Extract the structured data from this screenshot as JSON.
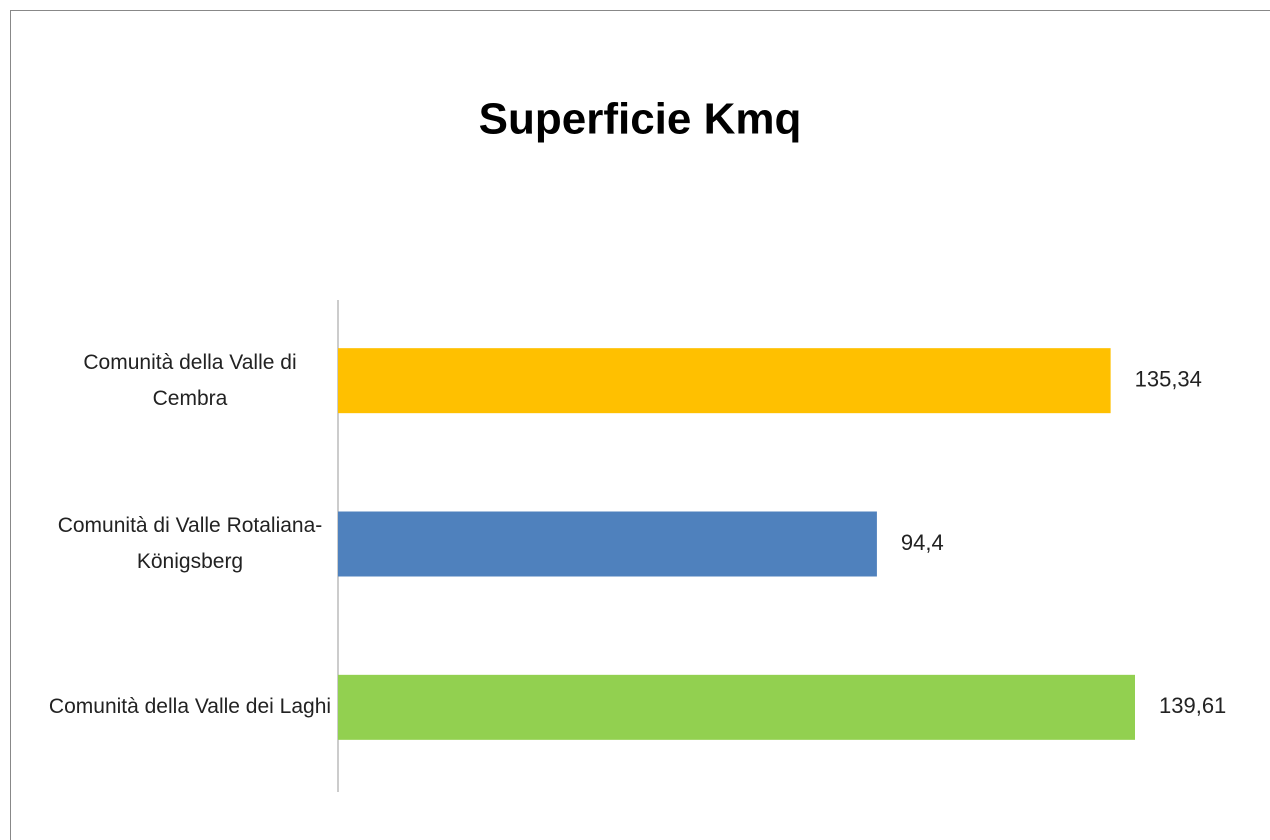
{
  "chart_data": {
    "type": "bar",
    "orientation": "horizontal",
    "title": "Superficie Kmq",
    "categories": [
      "Comunità della Valle di Cembra",
      "Comunità di Valle Rotaliana-Königsberg",
      "Comunità della Valle dei Laghi"
    ],
    "values": [
      135.34,
      94.4,
      139.61
    ],
    "value_labels": [
      "135,34",
      "94,4",
      "139,61"
    ],
    "colors": [
      "#ffc000",
      "#4f81bd",
      "#92d050"
    ]
  }
}
